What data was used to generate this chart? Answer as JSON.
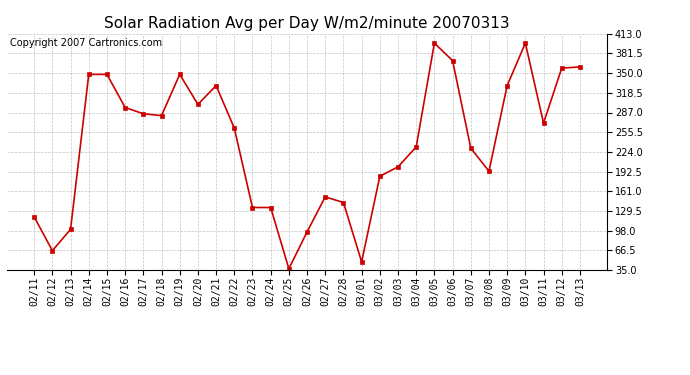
{
  "title": "Solar Radiation Avg per Day W/m2/minute 20070313",
  "copyright": "Copyright 2007 Cartronics.com",
  "labels": [
    "02/11",
    "02/12",
    "02/13",
    "02/14",
    "02/15",
    "02/16",
    "02/17",
    "02/18",
    "02/19",
    "02/20",
    "02/21",
    "02/22",
    "02/23",
    "02/24",
    "02/25",
    "02/26",
    "02/27",
    "02/28",
    "03/01",
    "03/02",
    "03/03",
    "03/04",
    "03/05",
    "03/06",
    "03/07",
    "03/08",
    "03/09",
    "03/10",
    "03/11",
    "03/12",
    "03/13"
  ],
  "values": [
    120,
    66,
    100,
    348,
    348,
    295,
    285,
    282,
    348,
    300,
    330,
    262,
    135,
    135,
    37,
    96,
    152,
    143,
    48,
    185,
    200,
    232,
    398,
    370,
    230,
    193,
    330,
    398,
    270,
    358,
    360
  ],
  "line_color": "#cc0000",
  "marker_color": "#cc0000",
  "bg_color": "#ffffff",
  "plot_bg_color": "#ffffff",
  "grid_color": "#aaaaaa",
  "ylim": [
    35,
    413
  ],
  "yticks": [
    35.0,
    66.5,
    98.0,
    129.5,
    161.0,
    192.5,
    224.0,
    255.5,
    287.0,
    318.5,
    350.0,
    381.5,
    413.0
  ],
  "title_fontsize": 11,
  "copyright_fontsize": 7,
  "tick_fontsize": 7
}
